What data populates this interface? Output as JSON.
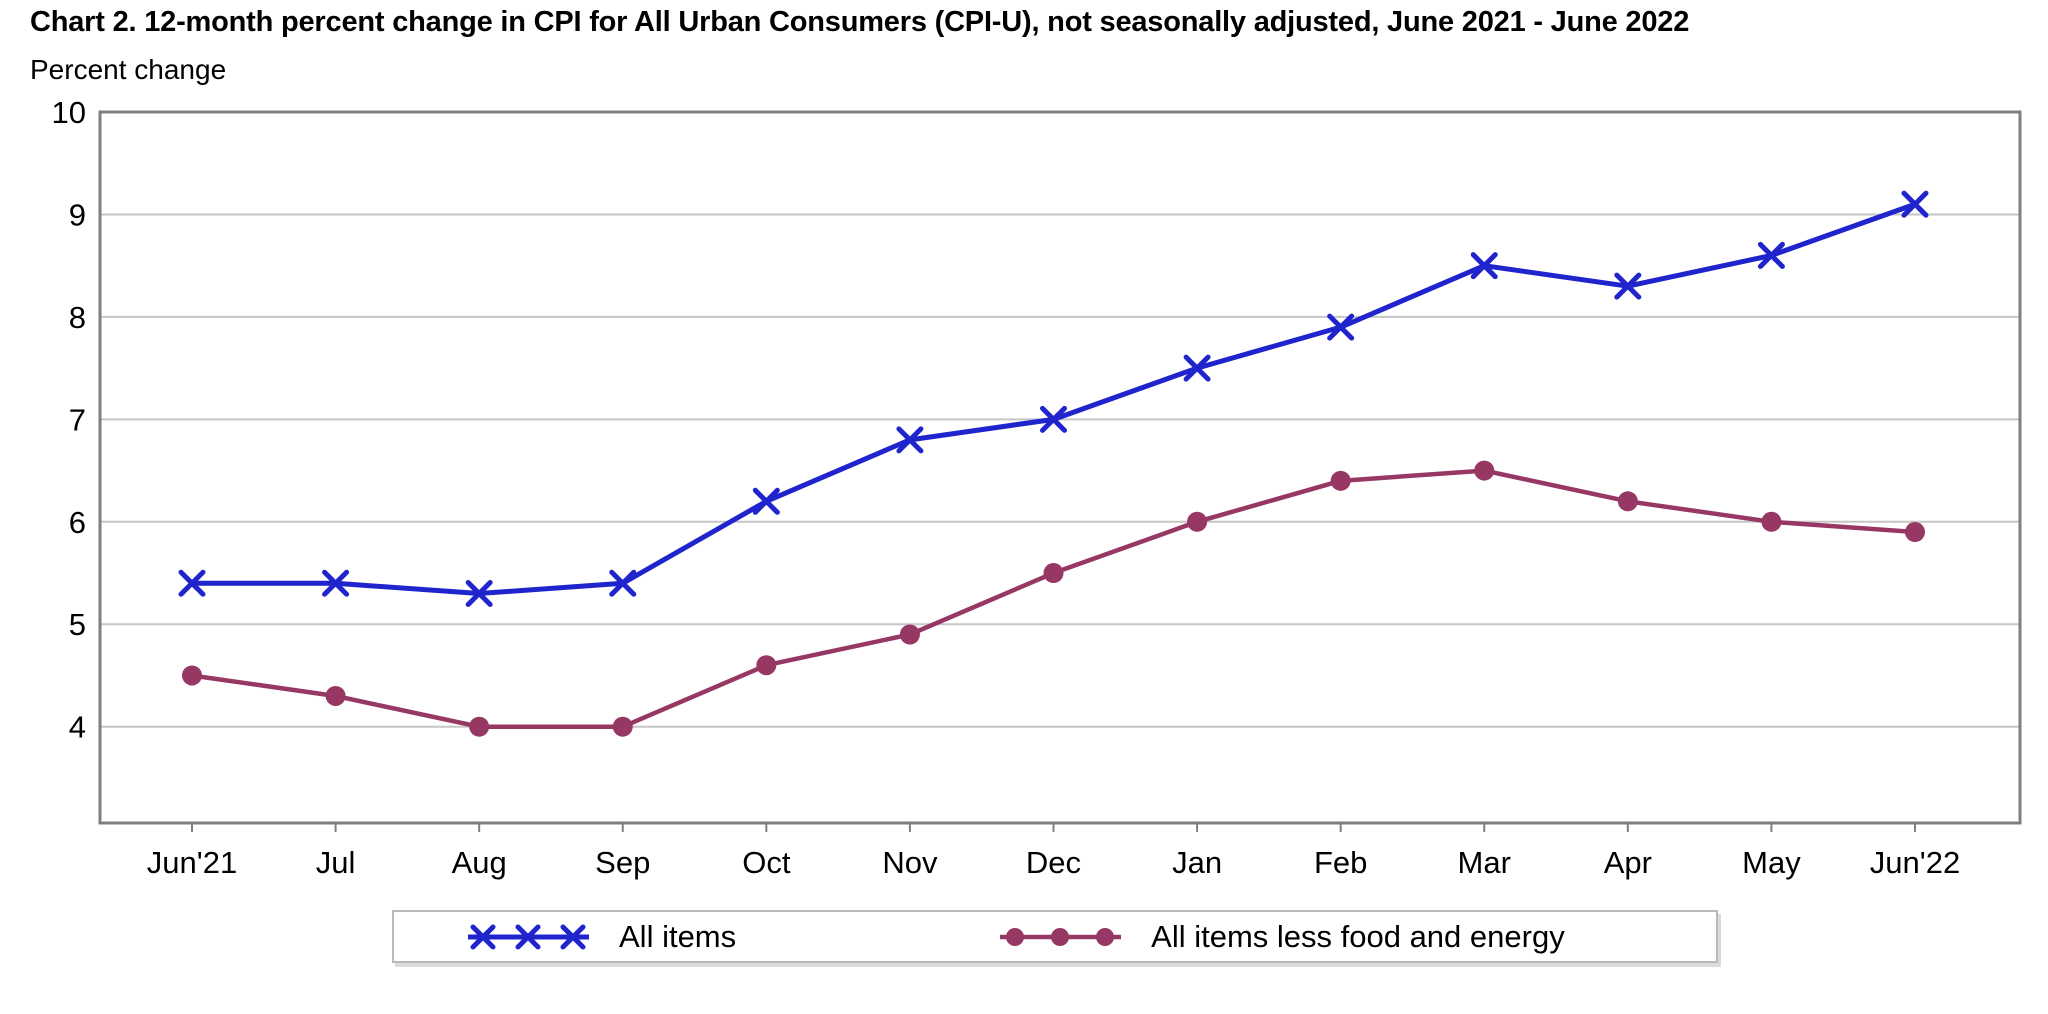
{
  "title": "Chart 2. 12-month percent change in CPI for All Urban Consumers (CPI-U), not seasonally adjusted, June 2021 - June 2022",
  "axis_caption": "Percent change",
  "chart_data": {
    "type": "line",
    "categories": [
      "Jun'21",
      "Jul",
      "Aug",
      "Sep",
      "Oct",
      "Nov",
      "Dec",
      "Jan",
      "Feb",
      "Mar",
      "Apr",
      "May",
      "Jun'22"
    ],
    "series": [
      {
        "name": "All items",
        "marker": "x",
        "color": "#1f24cc",
        "line_width": 5,
        "values": [
          5.4,
          5.4,
          5.3,
          5.4,
          6.2,
          6.8,
          7.0,
          7.5,
          7.9,
          8.5,
          8.3,
          8.6,
          9.1
        ]
      },
      {
        "name": "All items less food and energy",
        "marker": "circle",
        "color": "#963764",
        "line_width": 4.5,
        "values": [
          4.5,
          4.3,
          4.0,
          4.0,
          4.6,
          4.9,
          5.5,
          6.0,
          6.4,
          6.5,
          6.2,
          6.0,
          5.9
        ]
      }
    ],
    "title": "Chart 2. 12-month percent change in CPI for All Urban Consumers (CPI-U), not seasonally adjusted, June 2021 - June 2022",
    "xlabel": "",
    "ylabel": "Percent change",
    "yticks": [
      4,
      5,
      6,
      7,
      8,
      9,
      10
    ],
    "ylim": [
      3.06,
      10
    ],
    "grid": "horizontal",
    "legend_position": "bottom"
  },
  "colors": {
    "plot_border": "#7f7f7f",
    "gridline": "#c6c6c6",
    "tick": "#7f7f7f",
    "text": "#000000",
    "background": "#ffffff"
  }
}
